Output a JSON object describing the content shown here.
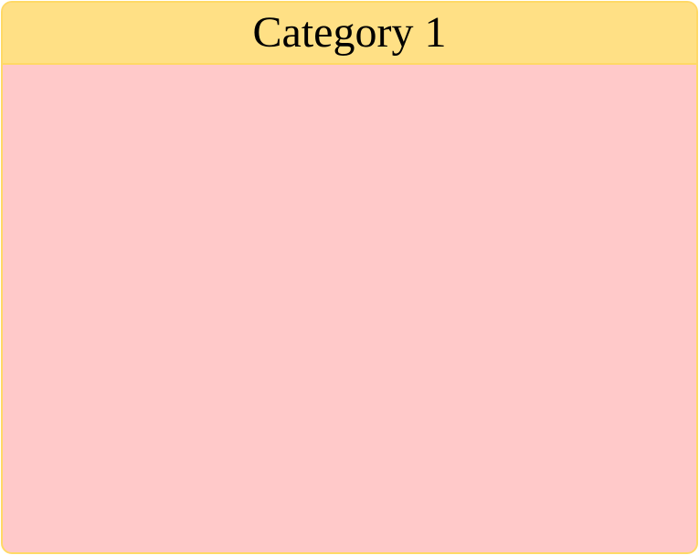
{
  "category": {
    "title": "Category 1",
    "colors": {
      "header_fill": "#ffe085",
      "border": "#ffd966",
      "body_fill": "#ffc9c9"
    }
  }
}
